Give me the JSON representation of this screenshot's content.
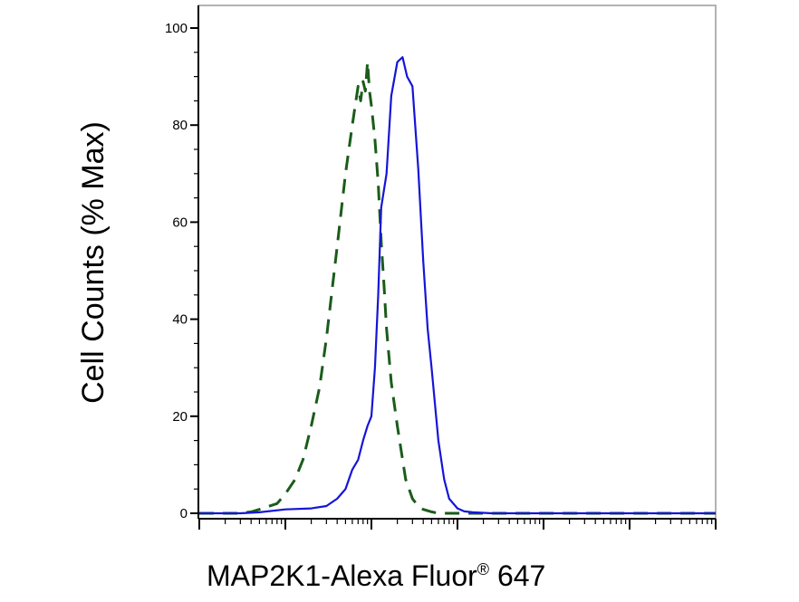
{
  "chart_data": {
    "type": "line",
    "xlabel": {
      "main": "MAP2K1-Alexa Fluor",
      "sup": "®",
      "suffix": " 647"
    },
    "ylabel": "Cell Counts (% Max)",
    "x_scale": "log",
    "xlim": [
      1,
      1000000
    ],
    "ylim": [
      0,
      100
    ],
    "y_ticks": [
      0,
      20,
      40,
      60,
      80,
      100
    ],
    "y_tick_labels": [
      "0",
      "20",
      "40",
      "60",
      "80",
      "100"
    ],
    "grid": false,
    "legend": "none",
    "series": [
      {
        "style": "dashed",
        "color": "#1a5c1a",
        "x": [
          1,
          2,
          3,
          4,
          5,
          8,
          10,
          13,
          16,
          20,
          25,
          30,
          40,
          50,
          60,
          70,
          75,
          80,
          85,
          90,
          95,
          100,
          110,
          120,
          130,
          140,
          150,
          170,
          200,
          250,
          300,
          350,
          400,
          500,
          600,
          800,
          1000,
          2000,
          5000,
          10000,
          100000,
          1000000
        ],
        "y": [
          0,
          0,
          0,
          0.3,
          0.8,
          2,
          4,
          7,
          11,
          18,
          26,
          36,
          55,
          70,
          80,
          88,
          85,
          89,
          87,
          93,
          87,
          84,
          77,
          68,
          56,
          47,
          38,
          27,
          18,
          7,
          3,
          1.5,
          0.8,
          0.3,
          0,
          0,
          0,
          0,
          0,
          0,
          0,
          0
        ]
      },
      {
        "style": "solid",
        "color": "#1515d8",
        "x": [
          1,
          3,
          5,
          10,
          20,
          30,
          40,
          50,
          60,
          70,
          80,
          90,
          100,
          110,
          120,
          130,
          150,
          170,
          200,
          230,
          260,
          300,
          350,
          400,
          450,
          500,
          600,
          700,
          800,
          1000,
          1200,
          1500,
          2000,
          2500,
          3000,
          4000,
          5000,
          7000,
          10000,
          100000,
          1000000
        ],
        "y": [
          0,
          0,
          0.2,
          0.8,
          1,
          1.5,
          3,
          5,
          9,
          11,
          15,
          18,
          20,
          30,
          45,
          63,
          70,
          86,
          93,
          94,
          90,
          88,
          71,
          52,
          38,
          30,
          15,
          7,
          3,
          1,
          0.4,
          0.2,
          0.1,
          0,
          0,
          0,
          0,
          0,
          0,
          0,
          0
        ]
      }
    ]
  }
}
